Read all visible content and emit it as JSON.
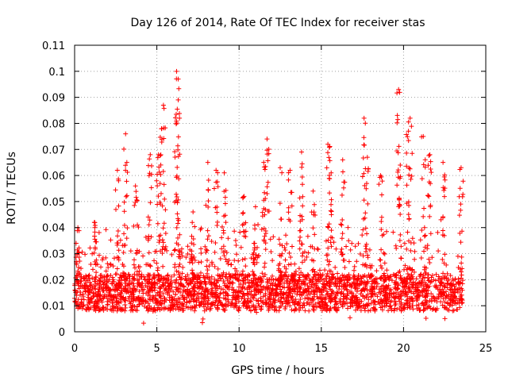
{
  "chart_data": {
    "type": "scatter",
    "title": "Day 126 of 2014, Rate Of TEC Index for receiver stas",
    "xlabel": "GPS time / hours",
    "ylabel": "ROTI / TECUs",
    "xlim": [
      0,
      25
    ],
    "ylim": [
      0,
      0.11
    ],
    "xticks": [
      0,
      5,
      10,
      15,
      20,
      25
    ],
    "xtick_labels": [
      "0",
      "5",
      "10",
      "15",
      "20",
      "25"
    ],
    "yticks": [
      0,
      0.01,
      0.02,
      0.03,
      0.04,
      0.05,
      0.06,
      0.07,
      0.08,
      0.09,
      0.1,
      0.11
    ],
    "ytick_labels": [
      "0",
      "0.01",
      "0.02",
      "0.03",
      "0.04",
      "0.05",
      "0.06",
      "0.07",
      "0.08",
      "0.09",
      "0.1",
      "0.11"
    ],
    "grid": true,
    "marker": "+",
    "color": "#ff0000",
    "series": [
      {
        "name": "ROTI",
        "x_range": [
          0,
          23.6
        ],
        "baseline_band": [
          0.008,
          0.022
        ],
        "notable_peaks": [
          {
            "x": 0.2,
            "y": 0.04
          },
          {
            "x": 1.2,
            "y": 0.042
          },
          {
            "x": 2.6,
            "y": 0.062
          },
          {
            "x": 3.1,
            "y": 0.076
          },
          {
            "x": 3.7,
            "y": 0.056
          },
          {
            "x": 4.6,
            "y": 0.068
          },
          {
            "x": 5.1,
            "y": 0.068
          },
          {
            "x": 5.4,
            "y": 0.087
          },
          {
            "x": 5.3,
            "y": 0.078
          },
          {
            "x": 6.2,
            "y": 0.1
          },
          {
            "x": 6.3,
            "y": 0.097
          },
          {
            "x": 6.3,
            "y": 0.089
          },
          {
            "x": 7.2,
            "y": 0.046
          },
          {
            "x": 8.1,
            "y": 0.065
          },
          {
            "x": 8.6,
            "y": 0.062
          },
          {
            "x": 9.1,
            "y": 0.061
          },
          {
            "x": 10.3,
            "y": 0.052
          },
          {
            "x": 11.0,
            "y": 0.048
          },
          {
            "x": 11.5,
            "y": 0.065
          },
          {
            "x": 11.7,
            "y": 0.074
          },
          {
            "x": 12.5,
            "y": 0.063
          },
          {
            "x": 13.1,
            "y": 0.062
          },
          {
            "x": 13.8,
            "y": 0.069
          },
          {
            "x": 14.5,
            "y": 0.054
          },
          {
            "x": 15.4,
            "y": 0.072
          },
          {
            "x": 15.6,
            "y": 0.061
          },
          {
            "x": 16.3,
            "y": 0.066
          },
          {
            "x": 17.6,
            "y": 0.082
          },
          {
            "x": 17.8,
            "y": 0.067
          },
          {
            "x": 18.6,
            "y": 0.06
          },
          {
            "x": 19.7,
            "y": 0.093
          },
          {
            "x": 19.8,
            "y": 0.064
          },
          {
            "x": 20.4,
            "y": 0.082
          },
          {
            "x": 20.3,
            "y": 0.077
          },
          {
            "x": 21.2,
            "y": 0.075
          },
          {
            "x": 21.6,
            "y": 0.068
          },
          {
            "x": 22.4,
            "y": 0.065
          },
          {
            "x": 23.5,
            "y": 0.063
          }
        ]
      }
    ]
  }
}
